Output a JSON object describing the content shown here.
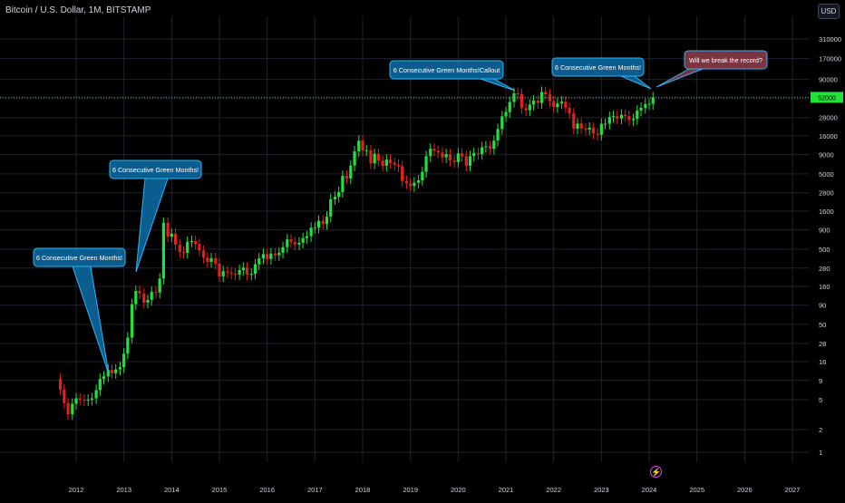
{
  "header": {
    "symbol_title": "Bitcoin / U.S. Dollar, 1M, BITSTAMP",
    "currency_label": "USD"
  },
  "colors": {
    "background": "#000000",
    "grid": "#1e222d",
    "up": "#22e23a",
    "down": "#e5201f",
    "axis_text": "#d1d4dc",
    "callout_fill": "#0b5d8f",
    "callout_border": "#29b6f6",
    "callout_red_fill": "#7b3442",
    "price_line": "#22e23a",
    "event_icon": "#e040fb"
  },
  "chart_data": {
    "type": "candlestick",
    "y_scale": "log",
    "ylim": [
      0.6,
      560000
    ],
    "xlim": [
      2011.5,
      2027.9
    ],
    "grid": true,
    "x_ticks": [
      "2012",
      "2013",
      "2014",
      "2015",
      "2016",
      "2017",
      "2018",
      "2019",
      "2020",
      "2021",
      "2022",
      "2023",
      "2024",
      "2025",
      "2026",
      "2027"
    ],
    "y_ticks": [
      "310000",
      "170000",
      "90000",
      "50000",
      "28000",
      "16000",
      "9000",
      "5000",
      "2800",
      "1600",
      "900",
      "500",
      "280",
      "160",
      "90",
      "50",
      "28",
      "16",
      "9",
      "5",
      "2",
      "1"
    ],
    "last_price": 52000,
    "series": [
      {
        "t": 2011.67,
        "close": 6.8
      },
      {
        "t": 2011.75,
        "close": 4.5
      },
      {
        "t": 2011.83,
        "close": 3.2
      },
      {
        "t": 2011.92,
        "close": 4.4
      },
      {
        "t": 2012.0,
        "close": 5.2
      },
      {
        "t": 2012.08,
        "close": 5.0
      },
      {
        "t": 2012.17,
        "close": 4.9
      },
      {
        "t": 2012.25,
        "close": 5.0
      },
      {
        "t": 2012.33,
        "close": 5.2
      },
      {
        "t": 2012.42,
        "close": 6.7
      },
      {
        "t": 2012.5,
        "close": 9.4
      },
      {
        "t": 2012.58,
        "close": 10.2
      },
      {
        "t": 2012.67,
        "close": 12.4
      },
      {
        "t": 2012.75,
        "close": 11.2
      },
      {
        "t": 2012.83,
        "close": 12.6
      },
      {
        "t": 2012.92,
        "close": 13.5
      },
      {
        "t": 2013.0,
        "close": 20.4
      },
      {
        "t": 2013.08,
        "close": 33.4
      },
      {
        "t": 2013.17,
        "close": 93
      },
      {
        "t": 2013.25,
        "close": 139
      },
      {
        "t": 2013.33,
        "close": 129
      },
      {
        "t": 2013.42,
        "close": 97
      },
      {
        "t": 2013.5,
        "close": 106
      },
      {
        "t": 2013.58,
        "close": 135
      },
      {
        "t": 2013.67,
        "close": 133
      },
      {
        "t": 2013.75,
        "close": 203
      },
      {
        "t": 2013.83,
        "close": 1120
      },
      {
        "t": 2013.92,
        "close": 732
      },
      {
        "t": 2014.0,
        "close": 803
      },
      {
        "t": 2014.08,
        "close": 573
      },
      {
        "t": 2014.17,
        "close": 457
      },
      {
        "t": 2014.25,
        "close": 448
      },
      {
        "t": 2014.33,
        "close": 627
      },
      {
        "t": 2014.42,
        "close": 640
      },
      {
        "t": 2014.5,
        "close": 585
      },
      {
        "t": 2014.58,
        "close": 480
      },
      {
        "t": 2014.67,
        "close": 386
      },
      {
        "t": 2014.75,
        "close": 338
      },
      {
        "t": 2014.83,
        "close": 378
      },
      {
        "t": 2014.92,
        "close": 320
      },
      {
        "t": 2015.0,
        "close": 217
      },
      {
        "t": 2015.08,
        "close": 254
      },
      {
        "t": 2015.17,
        "close": 244
      },
      {
        "t": 2015.25,
        "close": 236
      },
      {
        "t": 2015.33,
        "close": 230
      },
      {
        "t": 2015.42,
        "close": 263
      },
      {
        "t": 2015.5,
        "close": 284
      },
      {
        "t": 2015.58,
        "close": 230
      },
      {
        "t": 2015.67,
        "close": 236
      },
      {
        "t": 2015.75,
        "close": 314
      },
      {
        "t": 2015.83,
        "close": 377
      },
      {
        "t": 2015.92,
        "close": 430
      },
      {
        "t": 2016.0,
        "close": 369
      },
      {
        "t": 2016.08,
        "close": 437
      },
      {
        "t": 2016.17,
        "close": 416
      },
      {
        "t": 2016.25,
        "close": 448
      },
      {
        "t": 2016.33,
        "close": 531
      },
      {
        "t": 2016.42,
        "close": 673
      },
      {
        "t": 2016.5,
        "close": 624
      },
      {
        "t": 2016.58,
        "close": 575
      },
      {
        "t": 2016.67,
        "close": 608
      },
      {
        "t": 2016.75,
        "close": 701
      },
      {
        "t": 2016.83,
        "close": 742
      },
      {
        "t": 2016.92,
        "close": 963
      },
      {
        "t": 2017.0,
        "close": 965
      },
      {
        "t": 2017.08,
        "close": 1190
      },
      {
        "t": 2017.17,
        "close": 1080
      },
      {
        "t": 2017.25,
        "close": 1350
      },
      {
        "t": 2017.33,
        "close": 2300
      },
      {
        "t": 2017.42,
        "close": 2480
      },
      {
        "t": 2017.5,
        "close": 2870
      },
      {
        "t": 2017.58,
        "close": 4700
      },
      {
        "t": 2017.67,
        "close": 4340
      },
      {
        "t": 2017.75,
        "close": 6450
      },
      {
        "t": 2017.83,
        "close": 9950
      },
      {
        "t": 2017.92,
        "close": 13800
      },
      {
        "t": 2018.0,
        "close": 10200
      },
      {
        "t": 2018.08,
        "close": 10300
      },
      {
        "t": 2018.17,
        "close": 6900
      },
      {
        "t": 2018.25,
        "close": 9240
      },
      {
        "t": 2018.33,
        "close": 7500
      },
      {
        "t": 2018.42,
        "close": 6400
      },
      {
        "t": 2018.5,
        "close": 7730
      },
      {
        "t": 2018.58,
        "close": 7000
      },
      {
        "t": 2018.67,
        "close": 6620
      },
      {
        "t": 2018.75,
        "close": 6300
      },
      {
        "t": 2018.83,
        "close": 4020
      },
      {
        "t": 2018.92,
        "close": 3740
      },
      {
        "t": 2019.0,
        "close": 3440
      },
      {
        "t": 2019.08,
        "close": 3820
      },
      {
        "t": 2019.17,
        "close": 4100
      },
      {
        "t": 2019.25,
        "close": 5320
      },
      {
        "t": 2019.33,
        "close": 8570
      },
      {
        "t": 2019.42,
        "close": 10800
      },
      {
        "t": 2019.5,
        "close": 10100
      },
      {
        "t": 2019.58,
        "close": 9600
      },
      {
        "t": 2019.67,
        "close": 8290
      },
      {
        "t": 2019.75,
        "close": 9150
      },
      {
        "t": 2019.83,
        "close": 7550
      },
      {
        "t": 2019.92,
        "close": 7200
      },
      {
        "t": 2020.0,
        "close": 9350
      },
      {
        "t": 2020.08,
        "close": 8530
      },
      {
        "t": 2020.17,
        "close": 6410
      },
      {
        "t": 2020.25,
        "close": 8620
      },
      {
        "t": 2020.33,
        "close": 9450
      },
      {
        "t": 2020.42,
        "close": 9140
      },
      {
        "t": 2020.5,
        "close": 11330
      },
      {
        "t": 2020.58,
        "close": 11650
      },
      {
        "t": 2020.67,
        "close": 10780
      },
      {
        "t": 2020.75,
        "close": 13800
      },
      {
        "t": 2020.83,
        "close": 19700
      },
      {
        "t": 2020.92,
        "close": 28990
      },
      {
        "t": 2021.0,
        "close": 33100
      },
      {
        "t": 2021.08,
        "close": 45200
      },
      {
        "t": 2021.17,
        "close": 58800
      },
      {
        "t": 2021.25,
        "close": 57700
      },
      {
        "t": 2021.33,
        "close": 37300
      },
      {
        "t": 2021.42,
        "close": 35000
      },
      {
        "t": 2021.5,
        "close": 41500
      },
      {
        "t": 2021.58,
        "close": 47100
      },
      {
        "t": 2021.67,
        "close": 43800
      },
      {
        "t": 2021.75,
        "close": 61300
      },
      {
        "t": 2021.83,
        "close": 57000
      },
      {
        "t": 2021.92,
        "close": 46200
      },
      {
        "t": 2022.0,
        "close": 38500
      },
      {
        "t": 2022.08,
        "close": 43200
      },
      {
        "t": 2022.17,
        "close": 45500
      },
      {
        "t": 2022.25,
        "close": 37700
      },
      {
        "t": 2022.33,
        "close": 31800
      },
      {
        "t": 2022.42,
        "close": 19900
      },
      {
        "t": 2022.5,
        "close": 23300
      },
      {
        "t": 2022.58,
        "close": 20050
      },
      {
        "t": 2022.67,
        "close": 19400
      },
      {
        "t": 2022.75,
        "close": 20500
      },
      {
        "t": 2022.83,
        "close": 17170
      },
      {
        "t": 2022.92,
        "close": 16540
      },
      {
        "t": 2023.0,
        "close": 23130
      },
      {
        "t": 2023.08,
        "close": 23140
      },
      {
        "t": 2023.17,
        "close": 28470
      },
      {
        "t": 2023.25,
        "close": 29250
      },
      {
        "t": 2023.33,
        "close": 27200
      },
      {
        "t": 2023.42,
        "close": 30480
      },
      {
        "t": 2023.5,
        "close": 29230
      },
      {
        "t": 2023.58,
        "close": 25940
      },
      {
        "t": 2023.67,
        "close": 26970
      },
      {
        "t": 2023.75,
        "close": 34640
      },
      {
        "t": 2023.83,
        "close": 37720
      },
      {
        "t": 2023.92,
        "close": 42280
      },
      {
        "t": 2024.0,
        "close": 42580
      },
      {
        "t": 2024.08,
        "close": 52000
      }
    ]
  },
  "callouts": [
    {
      "text": "6 Consecutive Green Months!",
      "style": "blue"
    },
    {
      "text": "6 Consecutive Green Months!",
      "style": "blue"
    },
    {
      "text": "6 Consecutive Green Months!Callout",
      "style": "blue"
    },
    {
      "text": "6 Consecutive Green Months!",
      "style": "blue"
    },
    {
      "text": "Will we break the record?",
      "style": "red"
    }
  ]
}
